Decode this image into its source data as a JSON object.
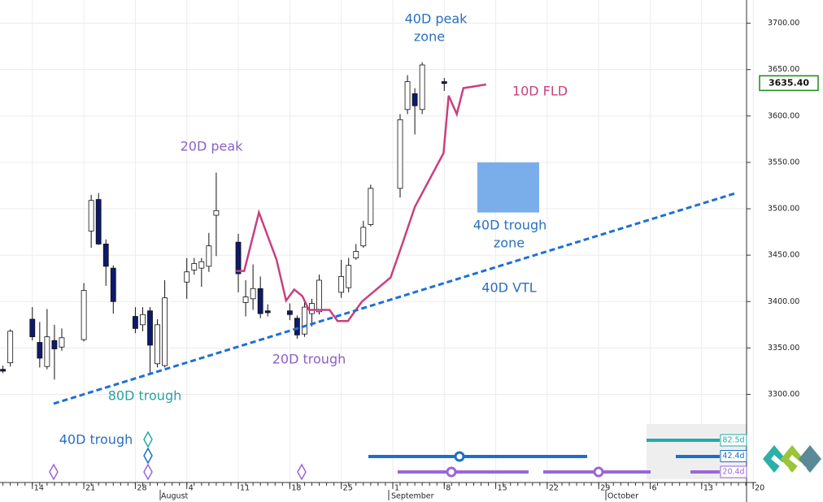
{
  "chart_data": {
    "type": "candlestick",
    "xlim": [
      9.6,
      111.1
    ],
    "ylim": [
      3205,
      3725
    ],
    "xticks": [
      14,
      21,
      28,
      {
        "value": 35,
        "label": "4"
      },
      {
        "value": 42,
        "label": "11"
      },
      {
        "value": 49,
        "label": "18"
      },
      {
        "value": 56,
        "label": "25"
      },
      {
        "value": 63,
        "label": "1"
      },
      {
        "value": 70,
        "label": "8"
      },
      {
        "value": 77,
        "label": "15"
      },
      {
        "value": 84,
        "label": "22"
      },
      {
        "value": 91,
        "label": "29"
      },
      {
        "value": 98,
        "label": "6"
      },
      {
        "value": 105,
        "label": "13"
      },
      {
        "value": 112,
        "label": "20"
      }
    ],
    "month_labels": [
      "August",
      "September",
      "October"
    ],
    "yticks": [
      {
        "value": 3300,
        "label": "3300.00"
      },
      {
        "value": 3350,
        "label": "3350.00"
      },
      {
        "value": 3400,
        "label": "3400.00"
      },
      {
        "value": 3450,
        "label": "3450.00"
      },
      {
        "value": 3500,
        "label": "3500.00"
      },
      {
        "value": 3550,
        "label": "3550.00"
      },
      {
        "value": 3600,
        "label": "3600.00"
      },
      {
        "value": 3650,
        "label": "3650.00"
      },
      {
        "value": 3700,
        "label": "3700.00"
      }
    ],
    "grid": true,
    "last_price": {
      "value": 3635.4,
      "label": "3635.40"
    },
    "up_color": "#ffffff",
    "down_color": "#0d1a6b",
    "candles": {
      "x": [
        10,
        11,
        14,
        15,
        16,
        17,
        18,
        21,
        22,
        23,
        24,
        25,
        28,
        29,
        30,
        31,
        32,
        35,
        36,
        37,
        38,
        39,
        42,
        43,
        44,
        45,
        46,
        49,
        50,
        51,
        52,
        53,
        56,
        57,
        58,
        59,
        60,
        64,
        65,
        66,
        67,
        70
      ],
      "open": [
        3327,
        3334,
        3381,
        3356,
        3330,
        3358,
        3351,
        3359,
        3476,
        3510,
        3462,
        3436,
        3384,
        3375,
        3390,
        3333,
        3331,
        3421,
        3434,
        3436,
        3438,
        3493,
        3464,
        3399,
        3403,
        3414,
        3390,
        3390,
        3382,
        3365,
        3387,
        3389,
        3410,
        3415,
        3447,
        3460,
        3483,
        3522,
        3607,
        3624,
        3607,
        3637
      ],
      "high": [
        3331,
        3370,
        3394,
        3378,
        3392,
        3375,
        3371,
        3420,
        3515,
        3517,
        3467,
        3439,
        3394,
        3394,
        3394,
        3381,
        3423,
        3447,
        3447,
        3447,
        3474,
        3539,
        3473,
        3423,
        3440,
        3427,
        3397,
        3398,
        3385,
        3400,
        3403,
        3429,
        3445,
        3447,
        3462,
        3487,
        3526,
        3602,
        3644,
        3630,
        3658,
        3641
      ],
      "low": [
        3323,
        3330,
        3358,
        3329,
        3327,
        3316,
        3347,
        3357,
        3458,
        3461,
        3417,
        3387,
        3366,
        3368,
        3323,
        3329,
        3329,
        3403,
        3429,
        3416,
        3432,
        3449,
        3410,
        3384,
        3391,
        3382,
        3384,
        3380,
        3360,
        3362,
        3373,
        3386,
        3404,
        3410,
        3445,
        3458,
        3481,
        3512,
        3602,
        3580,
        3602,
        3627
      ],
      "close": [
        3325,
        3368,
        3362,
        3339,
        3362,
        3349,
        3361,
        3412,
        3509,
        3462,
        3438,
        3400,
        3371,
        3386,
        3353,
        3375,
        3404,
        3432,
        3441,
        3443,
        3460,
        3498,
        3430,
        3405,
        3414,
        3387,
        3388,
        3386,
        3364,
        3394,
        3398,
        3423,
        3427,
        3439,
        3454,
        3480,
        3522,
        3596,
        3637,
        3611,
        3655,
        3635
      ]
    },
    "lines": [
      {
        "name": "10D FLD",
        "color": "#c8407e",
        "dashed": false,
        "x": [
          41.7,
          42.8,
          44.8,
          47.2,
          48.5,
          49.6,
          50.7,
          51.6,
          54.4,
          55.5,
          56.9,
          58.8,
          62.7,
          64.3,
          66.0,
          69.9,
          70.6,
          71.7,
          72.6,
          75.7
        ],
        "values": [
          3433,
          3433,
          3496,
          3445,
          3401,
          3413,
          3406,
          3391,
          3391,
          3379,
          3379,
          3400,
          3426,
          3462,
          3502,
          3560,
          3622,
          3602,
          3630,
          3634
        ]
      },
      {
        "name": "40D VTL",
        "color": "#1f6fd6",
        "dashed": true,
        "x": [
          16.9,
          109.7
        ],
        "values": [
          3290,
          3517
        ]
      }
    ],
    "zone": {
      "name": [
        "40D trough",
        "zone"
      ],
      "x": [
        74.5,
        82.9
      ],
      "values": [
        3550,
        3496
      ],
      "color": "#7aaeea"
    },
    "annotations": {
      "peak_zone": [
        "40D peak",
        "zone"
      ],
      "peak20": "20D peak",
      "trough20": "20D trough",
      "trough80": "80D trough",
      "trough40": "40D trough"
    },
    "cycles": [
      {
        "label": "82.5d",
        "color": "#22aaaa"
      },
      {
        "label": "42.4d",
        "color": "#1b6fc8"
      },
      {
        "label": "20.4d",
        "color": "#9a66d8"
      }
    ]
  }
}
